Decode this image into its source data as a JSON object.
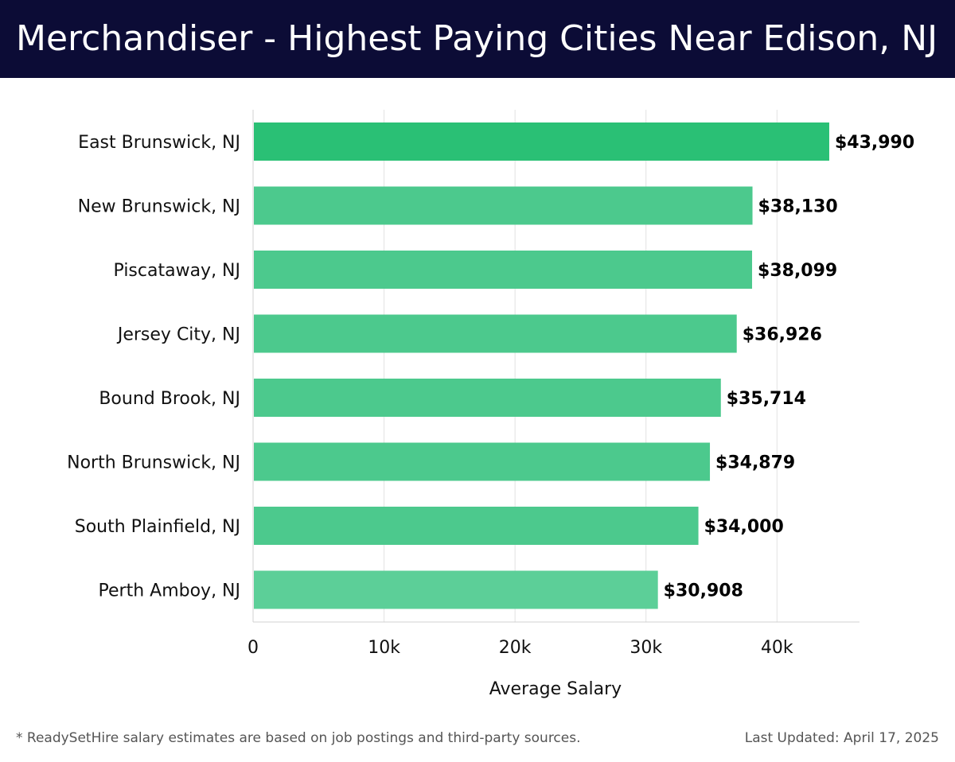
{
  "header": {
    "title": "Merchandiser - Highest Paying Cities Near Edison, NJ"
  },
  "footer": {
    "note": "* ReadySetHire salary estimates are based on job postings and third-party sources.",
    "updated": "Last Updated: April 17, 2025"
  },
  "colors": {
    "header_bg": "#0c0c36",
    "bar_top": "#2ac075",
    "bar_other": "#4cc98d",
    "bar_last": "#5ccf98"
  },
  "chart_data": {
    "type": "bar",
    "orientation": "horizontal",
    "categories": [
      "East Brunswick, NJ",
      "New Brunswick, NJ",
      "Piscataway, NJ",
      "Jersey City, NJ",
      "Bound Brook, NJ",
      "North Brunswick, NJ",
      "South Plainfield, NJ",
      "Perth Amboy, NJ"
    ],
    "values": [
      43990,
      38130,
      38099,
      36926,
      35714,
      34879,
      34000,
      30908
    ],
    "value_labels": [
      "$43,990",
      "$38,130",
      "$38,099",
      "$36,926",
      "$35,714",
      "$34,879",
      "$34,000",
      "$30,908"
    ],
    "xlabel": "Average Salary",
    "ylabel": "",
    "xlim": [
      0,
      46300
    ],
    "xticks": [
      0,
      10000,
      20000,
      30000,
      40000
    ],
    "xtick_labels": [
      "0",
      "10k",
      "20k",
      "30k",
      "40k"
    ],
    "grid": "vertical"
  }
}
